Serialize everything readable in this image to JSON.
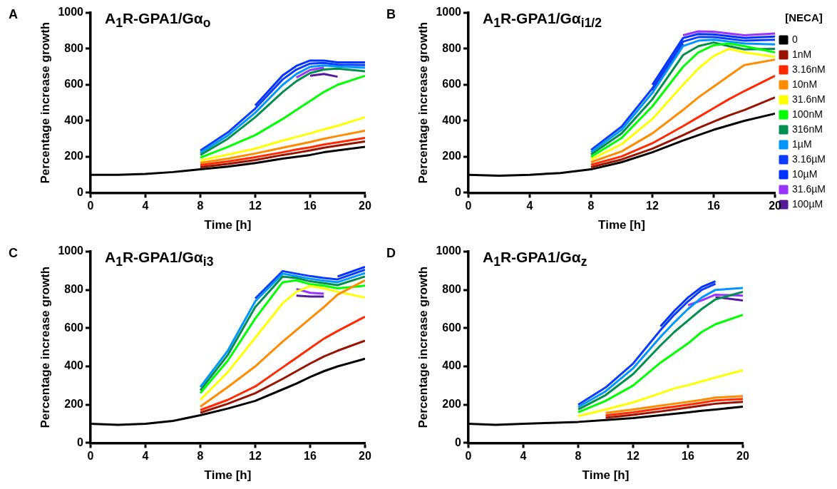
{
  "chart_data": [
    {
      "type": "line",
      "title": "A$_{1}$R-GPA1/Gα$_{o}$",
      "xlabel": "Time [h]",
      "ylabel": "Percentage increase growth",
      "annotations": [
        "A"
      ],
      "xlim": [
        0,
        20
      ],
      "xticks": [
        0,
        4,
        8,
        12,
        16,
        20
      ],
      "ylim": [
        0,
        1000
      ],
      "yticks": [
        0,
        200,
        400,
        600,
        800,
        1000
      ],
      "grid": false,
      "legend": false,
      "x": [
        0,
        2,
        4,
        6,
        8,
        10,
        12,
        14,
        15,
        16,
        17,
        18,
        20
      ],
      "series": [
        {
          "color": "#000000",
          "values": [
            100,
            100,
            105,
            115,
            130,
            145,
            165,
            190,
            200,
            210,
            225,
            235,
            255
          ]
        },
        {
          "color": "#991400",
          "x": [
            8,
            10,
            12,
            14,
            15,
            16,
            17,
            18,
            20
          ],
          "values": [
            142,
            160,
            182,
            210,
            222,
            235,
            250,
            262,
            285
          ]
        },
        {
          "color": "#ff2a00",
          "x": [
            8,
            10,
            12,
            14,
            15,
            16,
            17,
            18,
            20
          ],
          "values": [
            154,
            174,
            198,
            225,
            240,
            252,
            268,
            280,
            305
          ]
        },
        {
          "color": "#ff8c00",
          "x": [
            8,
            10,
            12,
            14,
            15,
            16,
            17,
            18,
            20
          ],
          "values": [
            166,
            190,
            218,
            250,
            266,
            282,
            300,
            315,
            345
          ]
        },
        {
          "color": "#ffff00",
          "x": [
            8,
            10,
            12,
            14,
            15,
            16,
            17,
            18,
            20
          ],
          "values": [
            180,
            212,
            245,
            290,
            310,
            330,
            352,
            372,
            420
          ]
        },
        {
          "color": "#00ff00",
          "x": [
            8,
            10,
            12,
            14,
            15,
            16,
            17,
            18,
            20
          ],
          "values": [
            195,
            255,
            320,
            410,
            460,
            510,
            560,
            600,
            650
          ]
        },
        {
          "color": "#008f4f",
          "x": [
            8,
            10,
            12,
            14,
            15,
            16,
            17,
            18,
            20
          ],
          "values": [
            210,
            300,
            420,
            560,
            620,
            665,
            685,
            690,
            675
          ]
        },
        {
          "color": "#0096ff",
          "x": [
            8,
            10,
            12,
            14,
            15,
            16,
            17,
            18,
            20
          ],
          "values": [
            222,
            318,
            445,
            600,
            660,
            700,
            708,
            702,
            695
          ]
        },
        {
          "color": "#0a3cff",
          "x": [
            8,
            10,
            12,
            14,
            15,
            16,
            17,
            18,
            20
          ],
          "values": [
            234,
            335,
            468,
            630,
            685,
            718,
            722,
            712,
            710
          ]
        },
        {
          "color": "#0033ff",
          "x": [
            12,
            14,
            15,
            16,
            17,
            18,
            20
          ],
          "values": [
            485,
            652,
            705,
            735,
            735,
            725,
            725
          ]
        },
        {
          "color": "#9933ff",
          "x": [
            15,
            16,
            17
          ],
          "values": [
            640,
            682,
            696
          ]
        },
        {
          "color": "#551a99",
          "x": [
            16,
            17,
            18
          ],
          "values": [
            650,
            660,
            645
          ]
        }
      ]
    },
    {
      "type": "line",
      "title": "A$_{1}$R-GPA1/Gα$_{i1/2}$",
      "xlabel": "Time [h]",
      "ylabel": "Percentage increase growth",
      "annotations": [
        "B"
      ],
      "xlim": [
        0,
        20
      ],
      "xticks": [
        0,
        4,
        8,
        12,
        16,
        20
      ],
      "ylim": [
        0,
        1000
      ],
      "yticks": [
        0,
        200,
        400,
        600,
        800,
        1000
      ],
      "grid": false,
      "legend": "right",
      "legend_title": "[NECA]",
      "x": [
        0,
        2,
        4,
        6,
        8,
        10,
        12,
        14,
        15,
        16,
        17,
        18,
        20
      ],
      "series": [
        {
          "name": "0",
          "color": "#000000",
          "values": [
            100,
            95,
            100,
            110,
            130,
            170,
            225,
            290,
            320,
            350,
            375,
            400,
            440
          ]
        },
        {
          "name": "1nM",
          "color": "#991400",
          "x": [
            8,
            10,
            12,
            14,
            15,
            16,
            17,
            18,
            20
          ],
          "values": [
            142,
            185,
            245,
            320,
            360,
            395,
            430,
            460,
            530
          ]
        },
        {
          "name": "3.16nM",
          "color": "#ff2a00",
          "x": [
            8,
            10,
            12,
            14,
            15,
            16,
            17,
            18,
            20
          ],
          "values": [
            155,
            202,
            275,
            370,
            420,
            470,
            520,
            565,
            650
          ]
        },
        {
          "name": "10nM",
          "color": "#ff8c00",
          "x": [
            8,
            10,
            12,
            14,
            15,
            16,
            17,
            18,
            20
          ],
          "values": [
            170,
            230,
            330,
            460,
            530,
            590,
            650,
            710,
            740
          ]
        },
        {
          "name": "31.6nM",
          "color": "#ffff00",
          "x": [
            8,
            10,
            12,
            14,
            15,
            16,
            17,
            18,
            20
          ],
          "values": [
            185,
            270,
            410,
            600,
            690,
            760,
            800,
            780,
            755
          ]
        },
        {
          "name": "100nM",
          "color": "#00ff00",
          "x": [
            8,
            10,
            12,
            14,
            15,
            16,
            17,
            18,
            20
          ],
          "values": [
            200,
            305,
            480,
            700,
            780,
            820,
            830,
            815,
            780
          ]
        },
        {
          "name": "316nM",
          "color": "#008f4f",
          "x": [
            8,
            10,
            12,
            14,
            15,
            16,
            17,
            18,
            20
          ],
          "values": [
            213,
            330,
            520,
            765,
            815,
            835,
            815,
            797,
            800
          ]
        },
        {
          "name": "1µM",
          "color": "#0096ff",
          "x": [
            8,
            10,
            12,
            14,
            15,
            16,
            17,
            18,
            20
          ],
          "values": [
            225,
            350,
            555,
            815,
            845,
            850,
            840,
            830,
            825
          ]
        },
        {
          "name": "3.16µM",
          "color": "#0a3cff",
          "x": [
            8,
            10,
            12,
            14,
            15,
            16,
            17,
            18,
            20
          ],
          "values": [
            238,
            368,
            580,
            840,
            865,
            865,
            855,
            845,
            850
          ]
        },
        {
          "name": "10µM",
          "color": "#0033ff",
          "x": [
            12,
            14,
            15,
            16,
            17,
            18,
            20
          ],
          "values": [
            600,
            860,
            882,
            880,
            870,
            860,
            868
          ]
        },
        {
          "name": "31.6µM",
          "color": "#9933ff",
          "x": [
            14,
            15,
            16,
            17,
            18,
            20
          ],
          "values": [
            875,
            897,
            895,
            885,
            875,
            885
          ]
        },
        {
          "name": "100µM",
          "color": "#551a99",
          "x": [
            12,
            14
          ],
          "values": [
            568,
            828
          ]
        }
      ]
    },
    {
      "type": "line",
      "title": "A$_{1}$R-GPA1/Gα$_{i3}$",
      "xlabel": "Time [h]",
      "ylabel": "Percentage increase growth",
      "annotations": [
        "C"
      ],
      "xlim": [
        0,
        20
      ],
      "xticks": [
        0,
        4,
        8,
        12,
        16,
        20
      ],
      "ylim": [
        0,
        1000
      ],
      "yticks": [
        0,
        200,
        400,
        600,
        800,
        1000
      ],
      "grid": false,
      "legend": false,
      "x": [
        0,
        2,
        4,
        6,
        8,
        10,
        12,
        14,
        15,
        16,
        17,
        18,
        20
      ],
      "series": [
        {
          "color": "#000000",
          "values": [
            100,
            95,
            100,
            115,
            145,
            180,
            220,
            280,
            310,
            345,
            375,
            400,
            440
          ]
        },
        {
          "color": "#991400",
          "x": [
            8,
            10,
            12,
            14,
            15,
            16,
            17,
            18,
            20
          ],
          "values": [
            158,
            205,
            260,
            335,
            375,
            415,
            452,
            482,
            535
          ]
        },
        {
          "color": "#ff2a00",
          "x": [
            8,
            10,
            12,
            14,
            15,
            16,
            17,
            18,
            20
          ],
          "values": [
            172,
            225,
            295,
            395,
            445,
            495,
            545,
            585,
            660
          ]
        },
        {
          "color": "#ff8c00",
          "x": [
            8,
            10,
            12,
            14,
            15,
            16,
            17,
            18,
            20
          ],
          "values": [
            190,
            292,
            400,
            530,
            590,
            650,
            710,
            775,
            850
          ]
        },
        {
          "color": "#ffff00",
          "x": [
            8,
            10,
            12,
            14,
            15,
            16,
            17,
            18,
            20
          ],
          "values": [
            225,
            370,
            550,
            730,
            790,
            820,
            808,
            790,
            760
          ]
        },
        {
          "color": "#00ff00",
          "x": [
            8,
            10,
            12,
            14,
            15,
            16,
            17,
            18,
            20
          ],
          "values": [
            260,
            430,
            650,
            840,
            850,
            830,
            822,
            808,
            822
          ]
        },
        {
          "color": "#008f4f",
          "x": [
            8,
            10,
            12,
            14,
            15,
            16,
            17,
            18,
            20
          ],
          "values": [
            275,
            460,
            710,
            870,
            862,
            845,
            835,
            825,
            870
          ]
        },
        {
          "color": "#0096ff",
          "x": [
            8,
            10,
            12,
            14,
            15,
            16,
            17,
            18,
            20
          ],
          "values": [
            292,
            482,
            740,
            885,
            872,
            858,
            848,
            840,
            888
          ]
        },
        {
          "color": "#0a3cff",
          "x": [
            12,
            14,
            15,
            16,
            17,
            18,
            20
          ],
          "values": [
            755,
            898,
            885,
            872,
            862,
            855,
            905
          ]
        },
        {
          "color": "#0033ff",
          "x": [
            18,
            20
          ],
          "values": [
            870,
            920
          ]
        },
        {
          "color": "#9933ff",
          "x": [
            15,
            16,
            17
          ],
          "values": [
            805,
            785,
            780
          ]
        },
        {
          "color": "#551a99",
          "x": [
            15,
            16,
            17
          ],
          "values": [
            770,
            765,
            765
          ]
        }
      ]
    },
    {
      "type": "line",
      "title": "A$_{1}$R-GPA1/Gα$_{z}$",
      "xlabel": "Time [h]",
      "ylabel": "Percentage increase growth",
      "annotations": [
        "D"
      ],
      "xlim": [
        0,
        20
      ],
      "xticks": [
        0,
        4,
        8,
        12,
        16,
        20
      ],
      "ylim": [
        0,
        1000
      ],
      "yticks": [
        0,
        200,
        400,
        600,
        800,
        1000
      ],
      "grid": false,
      "legend": false,
      "x": [
        0,
        2,
        4,
        6,
        8,
        10,
        12,
        14,
        15,
        16,
        17,
        18,
        20
      ],
      "series": [
        {
          "color": "#000000",
          "values": [
            100,
            95,
            100,
            105,
            110,
            120,
            130,
            145,
            152,
            160,
            168,
            175,
            190
          ]
        },
        {
          "color": "#991400",
          "x": [
            10,
            12,
            14,
            15,
            16,
            17,
            18,
            20
          ],
          "values": [
            132,
            147,
            165,
            175,
            185,
            195,
            205,
            215
          ]
        },
        {
          "color": "#ff2a00",
          "x": [
            10,
            12,
            14,
            15,
            16,
            17,
            18,
            20
          ],
          "values": [
            144,
            160,
            180,
            190,
            200,
            210,
            222,
            230
          ]
        },
        {
          "color": "#ff8c00",
          "x": [
            10,
            12,
            14,
            15,
            16,
            17,
            18,
            20
          ],
          "values": [
            157,
            175,
            195,
            205,
            215,
            225,
            237,
            245
          ]
        },
        {
          "color": "#ffff00",
          "x": [
            8,
            10,
            12,
            14,
            15,
            16,
            17,
            18,
            20
          ],
          "values": [
            140,
            175,
            212,
            260,
            285,
            302,
            322,
            342,
            380
          ]
        },
        {
          "color": "#00ff00",
          "x": [
            8,
            10,
            12,
            14,
            15,
            16,
            17,
            18,
            20
          ],
          "values": [
            160,
            220,
            300,
            420,
            470,
            520,
            580,
            620,
            670
          ]
        },
        {
          "color": "#008f4f",
          "x": [
            8,
            10,
            12,
            14,
            15,
            16,
            17,
            18,
            20
          ],
          "values": [
            175,
            250,
            360,
            510,
            580,
            640,
            700,
            750,
            790
          ]
        },
        {
          "color": "#0096ff",
          "x": [
            8,
            10,
            12,
            14,
            15,
            16,
            17,
            18,
            20
          ],
          "values": [
            188,
            270,
            390,
            555,
            630,
            700,
            760,
            800,
            810
          ]
        },
        {
          "color": "#0a3cff",
          "x": [
            8,
            10,
            12,
            14,
            15,
            16,
            17,
            18
          ],
          "values": [
            200,
            290,
            415,
            590,
            670,
            740,
            800,
            832
          ]
        },
        {
          "color": "#0033ff",
          "x": [
            14,
            15,
            16,
            17,
            18
          ],
          "values": [
            610,
            690,
            760,
            815,
            845
          ]
        },
        {
          "color": "#9933ff",
          "x": [
            16,
            17,
            18,
            20
          ],
          "values": [
            720,
            745,
            775,
            770
          ]
        },
        {
          "color": "#551a99",
          "x": [
            18,
            20
          ],
          "values": [
            762,
            745
          ]
        }
      ]
    }
  ]
}
